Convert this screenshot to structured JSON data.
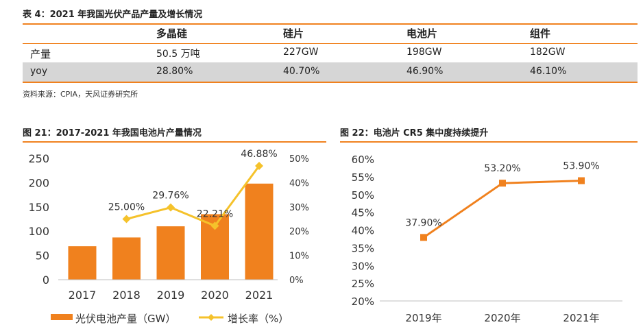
{
  "table": {
    "title": "表 4：2021 年我国光伏产品产量及增长情况",
    "headers": [
      "",
      "多晶硅",
      "硅片",
      "电池片",
      "组件"
    ],
    "rows": [
      [
        "产量",
        "50.5 万吨",
        "227GW",
        "198GW",
        "182GW"
      ],
      [
        "yoy",
        "28.80%",
        "40.70%",
        "46.90%",
        "46.10%"
      ]
    ],
    "source": "资料来源：CPIA，天风证券研究所"
  },
  "chart_data": [
    {
      "type": "bar",
      "title": "图 21：2017-2021 年我国电池片产量情况",
      "categories": [
        "2017",
        "2018",
        "2019",
        "2020",
        "2021"
      ],
      "series": [
        {
          "name": "光伏电池产量（GW）",
          "type": "bar",
          "axis": "left",
          "values": [
            69,
            87,
            110,
            135,
            198
          ],
          "color": "#f0811e"
        },
        {
          "name": "增长率（%）",
          "type": "line",
          "axis": "right",
          "values": [
            null,
            25.0,
            29.76,
            22.21,
            46.88
          ],
          "labels": [
            "",
            "25.00%",
            "29.76%",
            "22.21%",
            "46.88%"
          ],
          "color": "#f5c22b"
        }
      ],
      "left_axis": {
        "ticks": [
          "0",
          "50",
          "100",
          "150",
          "200",
          "250"
        ],
        "ylim": [
          0,
          250
        ]
      },
      "right_axis": {
        "ticks": [
          "0%",
          "10%",
          "20%",
          "30%",
          "40%",
          "50%"
        ],
        "ylim": [
          0,
          50
        ]
      },
      "legend": "bottom"
    },
    {
      "type": "line",
      "title": "图 22：电池片 CR5 集中度持续提升",
      "categories": [
        "2019年",
        "2020年",
        "2021年"
      ],
      "series": [
        {
          "values": [
            37.9,
            53.2,
            53.9
          ],
          "labels": [
            "37.90%",
            "53.20%",
            "53.90%"
          ],
          "color": "#f0811e"
        }
      ],
      "y_axis": {
        "ticks": [
          "20%",
          "25%",
          "30%",
          "35%",
          "40%",
          "45%",
          "50%",
          "55%",
          "60%"
        ],
        "ylim": [
          20,
          60
        ]
      }
    }
  ]
}
